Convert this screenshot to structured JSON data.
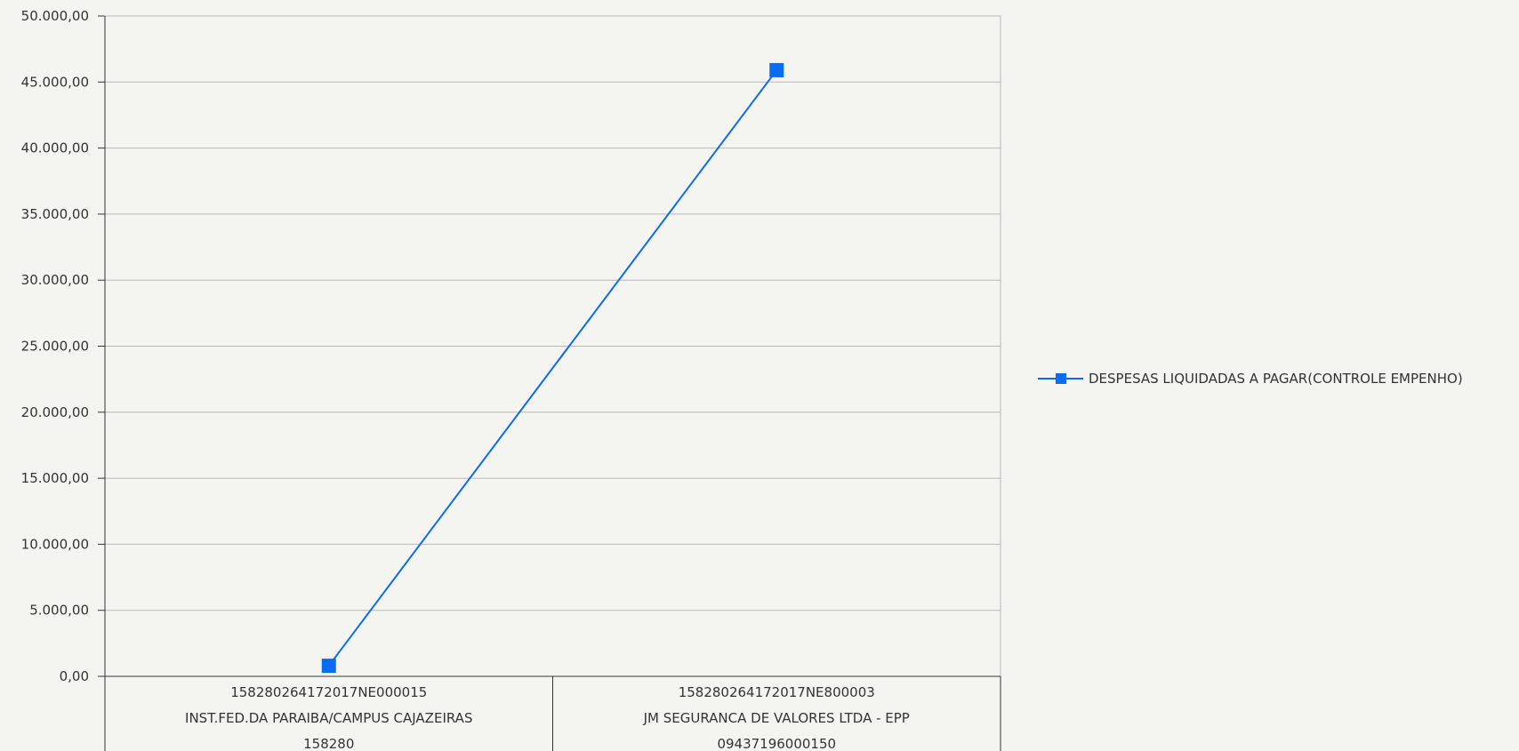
{
  "chart_data": {
    "type": "line",
    "title": "",
    "xlabel": "",
    "ylabel": "",
    "ylim": [
      0,
      50000
    ],
    "y_ticks": [
      "0,00",
      "5.000,00",
      "10.000,00",
      "15.000,00",
      "20.000,00",
      "25.000,00",
      "30.000,00",
      "35.000,00",
      "40.000,00",
      "45.000,00",
      "50.000,00"
    ],
    "y_tick_values": [
      0,
      5000,
      10000,
      15000,
      20000,
      25000,
      30000,
      35000,
      40000,
      45000,
      50000
    ],
    "grid": true,
    "legend_position": "right",
    "categories": [
      [
        "158280264172017NE000015",
        "INST.FED.DA PARAIBA/CAMPUS CAJAZEIRAS",
        "158280"
      ],
      [
        "158280264172017NE800003",
        "JM SEGURANCA DE VALORES LTDA - EPP",
        "09437196000150"
      ]
    ],
    "series": [
      {
        "name": "DESPESAS LIQUIDADAS A PAGAR(CONTROLE EMPENHO)",
        "values": [
          800,
          45900
        ],
        "color": "#0a6cf5",
        "marker": "square"
      }
    ]
  }
}
